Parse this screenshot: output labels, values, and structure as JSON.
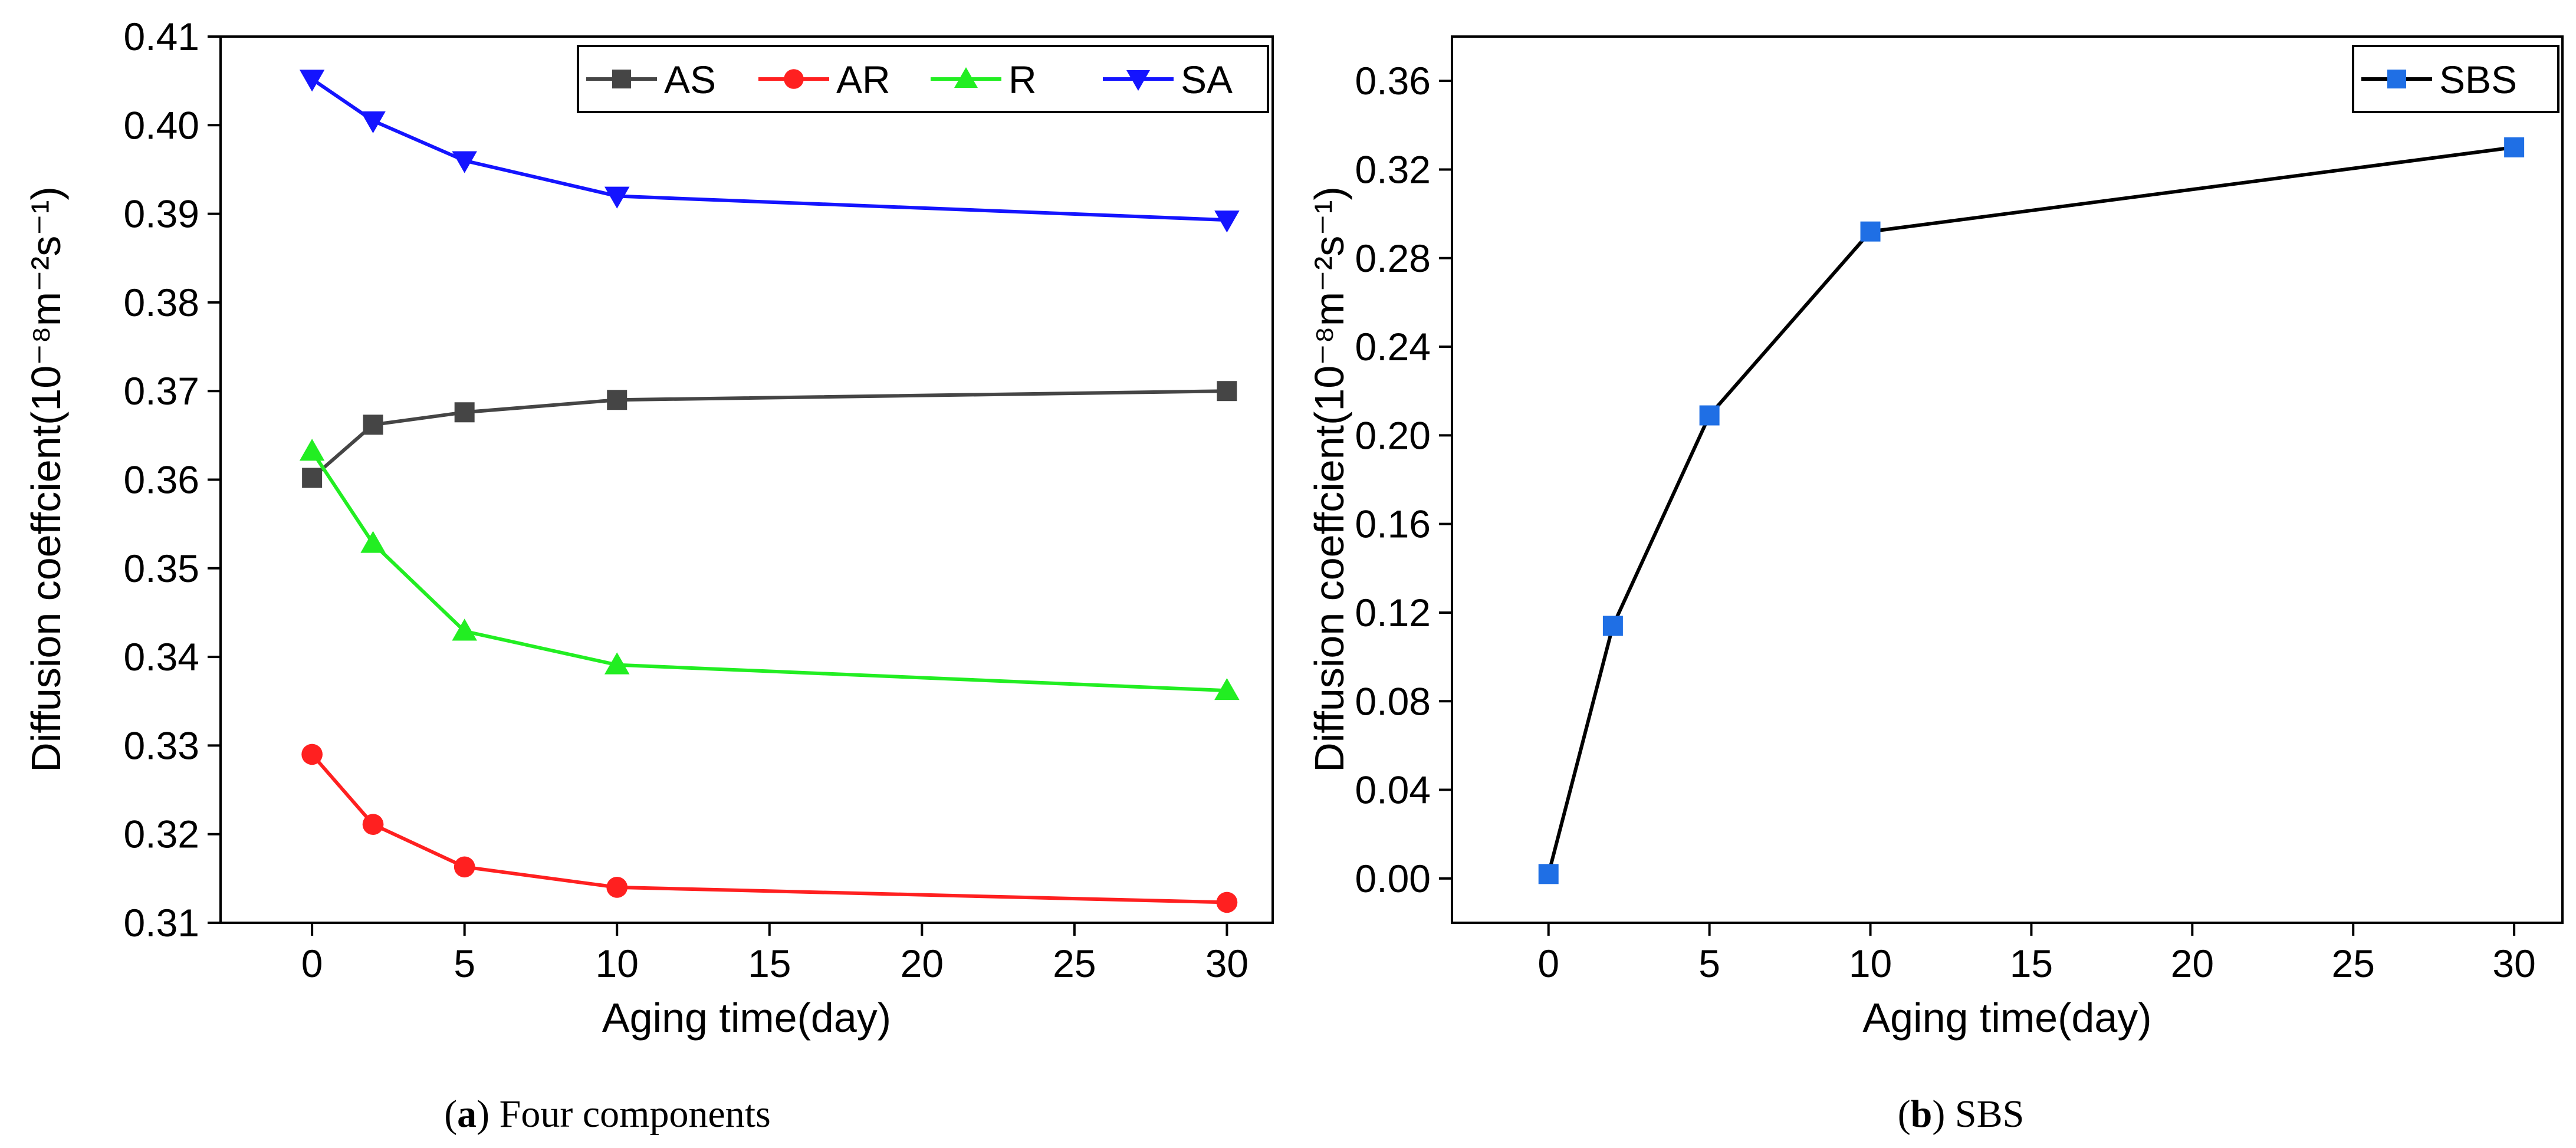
{
  "chart_data": [
    {
      "type": "line",
      "panel_label": "a",
      "caption": "Four components",
      "xlabel": "Aging time(day)",
      "ylabel": "Diffusion coeffcient(10⁻⁸m⁻²s⁻¹)",
      "x": [
        0,
        2,
        5,
        10,
        30
      ],
      "xlim": [
        -3,
        31.5
      ],
      "ylim": [
        0.31,
        0.41
      ],
      "xticks": [
        0,
        5,
        10,
        15,
        20,
        25,
        30
      ],
      "yticks": [
        0.31,
        0.32,
        0.33,
        0.34,
        0.35,
        0.36,
        0.37,
        0.38,
        0.39,
        0.4,
        0.41
      ],
      "ytick_labels": [
        "0.31",
        "0.32",
        "0.33",
        "0.34",
        "0.35",
        "0.36",
        "0.37",
        "0.38",
        "0.39",
        "0.40",
        "0.41"
      ],
      "legend_position": "top-right",
      "series": [
        {
          "name": "AS",
          "color": "#454545",
          "marker": "square",
          "values": [
            0.3602,
            0.3662,
            0.3676,
            0.369,
            0.37
          ]
        },
        {
          "name": "AR",
          "color": "#ff2020",
          "marker": "circle",
          "values": [
            0.329,
            0.3211,
            0.3163,
            0.314,
            0.3123
          ]
        },
        {
          "name": "R",
          "color": "#22ee22",
          "marker": "triangle-up",
          "values": [
            0.3632,
            0.3528,
            0.3429,
            0.3391,
            0.3362
          ]
        },
        {
          "name": "SA",
          "color": "#1414ff",
          "marker": "triangle-down",
          "values": [
            0.4052,
            0.4005,
            0.396,
            0.392,
            0.3893
          ]
        }
      ]
    },
    {
      "type": "line",
      "panel_label": "b",
      "caption": "SBS",
      "xlabel": "Aging time(day)",
      "ylabel": "Diffusion coeffcient(10⁻⁸m⁻²s⁻¹)",
      "x": [
        0,
        2,
        5,
        10,
        30
      ],
      "xlim": [
        -3,
        31.5
      ],
      "ylim": [
        -0.02,
        0.38
      ],
      "xticks": [
        0,
        5,
        10,
        15,
        20,
        25,
        30
      ],
      "yticks": [
        0.0,
        0.04,
        0.08,
        0.12,
        0.16,
        0.2,
        0.24,
        0.28,
        0.32,
        0.36
      ],
      "ytick_labels": [
        "0.00",
        "0.04",
        "0.08",
        "0.12",
        "0.16",
        "0.20",
        "0.24",
        "0.28",
        "0.32",
        "0.36"
      ],
      "legend_position": "top-right",
      "series": [
        {
          "name": "SBS",
          "color": "#000000",
          "marker_color": "#1f6fe5",
          "marker": "square",
          "values": [
            0.002,
            0.114,
            0.209,
            0.292,
            0.33
          ]
        }
      ]
    }
  ]
}
